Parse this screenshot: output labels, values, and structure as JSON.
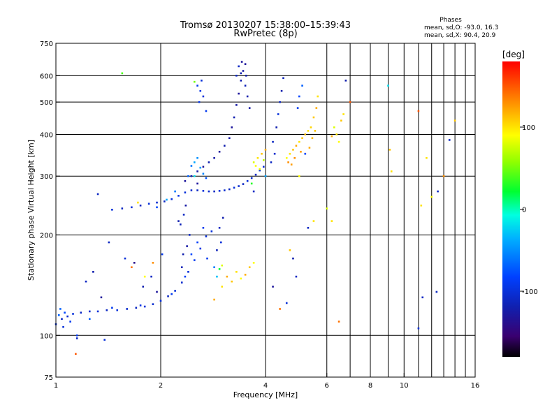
{
  "chart_data": {
    "type": "scatter",
    "title": "Tromsø 20130207 15:38:00–15:39:43",
    "subtitle": "RwPretec (8p)",
    "phases_box": {
      "heading": "Phases",
      "line_o": "mean, sd,O:  -93.0, 16.3",
      "line_x": "mean, sd,X:  90.4, 20.9"
    },
    "xlabel": "Frequency [MHz]",
    "ylabel": "Stationary phase Virtual Height [km]",
    "xscale": "log",
    "yscale": "log",
    "xlim": [
      1,
      16
    ],
    "ylim": [
      75,
      750
    ],
    "xticks": [
      {
        "value": 1,
        "label": "1"
      },
      {
        "value": 2,
        "label": "2"
      },
      {
        "value": 4,
        "label": "4"
      },
      {
        "value": 6,
        "label": "6"
      },
      {
        "value": 8,
        "label": "8"
      },
      {
        "value": 10,
        "label": "10"
      },
      {
        "value": 16,
        "label": "16"
      }
    ],
    "yticks": [
      {
        "value": 75,
        "label": "75"
      },
      {
        "value": 100,
        "label": "100"
      },
      {
        "value": 200,
        "label": "200"
      },
      {
        "value": 300,
        "label": "300"
      },
      {
        "value": 400,
        "label": "400"
      },
      {
        "value": 500,
        "label": "500"
      },
      {
        "value": 600,
        "label": "600"
      },
      {
        "value": 750,
        "label": "750"
      }
    ],
    "grid_x": [
      2,
      4,
      6,
      7,
      8,
      9,
      10,
      11,
      12,
      13,
      14,
      15
    ],
    "grid_y": [
      100,
      200,
      300,
      400,
      500,
      600
    ],
    "grid": true,
    "colorbar": {
      "label": "[deg]",
      "range": [
        -180,
        180
      ],
      "ticks": [
        {
          "value": 100,
          "label": "100"
        },
        {
          "value": 0,
          "label": "0"
        },
        {
          "value": -100,
          "label": "-100"
        }
      ]
    },
    "points": [
      [
        1.0,
        108,
        -100
      ],
      [
        1.04,
        112,
        -110
      ],
      [
        1.08,
        114,
        -105
      ],
      [
        1.12,
        116,
        -100
      ],
      [
        1.18,
        117,
        -110
      ],
      [
        1.25,
        118,
        -105
      ],
      [
        1.32,
        118,
        -100
      ],
      [
        1.4,
        119,
        -110
      ],
      [
        1.5,
        119,
        -100
      ],
      [
        1.6,
        120,
        -105
      ],
      [
        1.7,
        121,
        -110
      ],
      [
        1.8,
        122,
        -100
      ],
      [
        1.9,
        124,
        -105
      ],
      [
        2.0,
        127,
        -100
      ],
      [
        2.1,
        131,
        -110
      ],
      [
        2.2,
        136,
        -100
      ],
      [
        2.3,
        144,
        -105
      ],
      [
        2.4,
        155,
        -100
      ],
      [
        2.5,
        168,
        -90
      ],
      [
        2.6,
        182,
        -95
      ],
      [
        2.7,
        198,
        -100
      ],
      [
        2.8,
        205,
        -100
      ],
      [
        1.02,
        115,
        -70
      ],
      [
        1.06,
        117,
        -80
      ],
      [
        1.45,
        121,
        -90
      ],
      [
        1.75,
        123,
        -95
      ],
      [
        2.15,
        133,
        -90
      ],
      [
        2.35,
        150,
        -85
      ],
      [
        2.45,
        175,
        -80
      ],
      [
        2.55,
        190,
        -85
      ],
      [
        2.65,
        210,
        -90
      ],
      [
        2.72,
        170,
        -90
      ],
      [
        2.85,
        160,
        -60
      ],
      [
        2.9,
        150,
        -30
      ],
      [
        2.32,
        175,
        -120
      ],
      [
        2.38,
        185,
        -125
      ],
      [
        2.42,
        200,
        -110
      ],
      [
        2.3,
        160,
        -115
      ],
      [
        2.25,
        220,
        -120
      ],
      [
        2.33,
        230,
        -110
      ],
      [
        2.36,
        245,
        -125
      ],
      [
        2.28,
        215,
        -115
      ],
      [
        1.45,
        238,
        -100
      ],
      [
        1.55,
        240,
        -110
      ],
      [
        1.65,
        242,
        -100
      ],
      [
        1.75,
        245,
        -110
      ],
      [
        1.85,
        248,
        -100
      ],
      [
        1.95,
        250,
        -105
      ],
      [
        2.05,
        252,
        -110
      ],
      [
        2.15,
        256,
        -100
      ],
      [
        2.25,
        262,
        -95
      ],
      [
        2.35,
        268,
        -100
      ],
      [
        2.45,
        272,
        -105
      ],
      [
        2.55,
        272,
        -110
      ],
      [
        2.65,
        271,
        -100
      ],
      [
        2.75,
        270,
        -105
      ],
      [
        2.85,
        270,
        -110
      ],
      [
        2.95,
        271,
        -100
      ],
      [
        3.05,
        272,
        -105
      ],
      [
        3.15,
        274,
        -110
      ],
      [
        3.25,
        277,
        -100
      ],
      [
        3.35,
        280,
        -105
      ],
      [
        3.45,
        284,
        -110
      ],
      [
        3.55,
        290,
        -100
      ],
      [
        3.65,
        296,
        -105
      ],
      [
        3.75,
        303,
        -110
      ],
      [
        3.85,
        312,
        -100
      ],
      [
        3.95,
        320,
        -105
      ],
      [
        2.35,
        290,
        -130
      ],
      [
        2.45,
        300,
        -120
      ],
      [
        2.55,
        310,
        -125
      ],
      [
        2.65,
        320,
        -130
      ],
      [
        2.75,
        330,
        -120
      ],
      [
        2.85,
        340,
        -125
      ],
      [
        2.95,
        355,
        -130
      ],
      [
        3.05,
        370,
        -120
      ],
      [
        3.15,
        390,
        -125
      ],
      [
        3.2,
        420,
        -130
      ],
      [
        3.25,
        450,
        -120
      ],
      [
        3.3,
        490,
        -125
      ],
      [
        3.35,
        530,
        -130
      ],
      [
        3.4,
        580,
        -120
      ],
      [
        3.45,
        620,
        -125
      ],
      [
        3.5,
        650,
        -130
      ],
      [
        3.35,
        640,
        -110
      ],
      [
        3.4,
        610,
        -120
      ],
      [
        3.5,
        560,
        -115
      ],
      [
        3.55,
        520,
        -120
      ],
      [
        3.6,
        480,
        -125
      ],
      [
        3.3,
        600,
        -110
      ],
      [
        3.42,
        660,
        -130
      ],
      [
        3.52,
        600,
        -120
      ],
      [
        2.5,
        330,
        -40
      ],
      [
        2.55,
        340,
        -50
      ],
      [
        2.6,
        318,
        -45
      ],
      [
        2.45,
        322,
        -60
      ],
      [
        2.65,
        305,
        -55
      ],
      [
        2.4,
        300,
        -70
      ],
      [
        2.7,
        296,
        -75
      ],
      [
        2.55,
        560,
        -90
      ],
      [
        2.6,
        540,
        -95
      ],
      [
        2.65,
        520,
        -100
      ],
      [
        2.58,
        500,
        -95
      ],
      [
        2.62,
        580,
        -100
      ],
      [
        2.7,
        470,
        -90
      ],
      [
        2.5,
        575,
        50
      ],
      [
        3.7,
        330,
        80
      ],
      [
        3.8,
        340,
        100
      ],
      [
        3.9,
        350,
        110
      ],
      [
        3.75,
        322,
        90
      ],
      [
        4.0,
        360,
        120
      ],
      [
        3.95,
        335,
        70
      ],
      [
        3.85,
        315,
        85
      ],
      [
        4.2,
        380,
        -110
      ],
      [
        4.3,
        420,
        -120
      ],
      [
        4.35,
        460,
        -100
      ],
      [
        4.4,
        500,
        -110
      ],
      [
        4.45,
        540,
        -120
      ],
      [
        4.5,
        590,
        -115
      ],
      [
        4.25,
        350,
        -105
      ],
      [
        4.15,
        330,
        -110
      ],
      [
        4.6,
        340,
        90
      ],
      [
        4.7,
        350,
        100
      ],
      [
        4.8,
        360,
        110
      ],
      [
        4.9,
        370,
        120
      ],
      [
        5.0,
        380,
        100
      ],
      [
        5.1,
        390,
        110
      ],
      [
        5.2,
        400,
        115
      ],
      [
        5.3,
        410,
        100
      ],
      [
        5.4,
        420,
        105
      ],
      [
        5.5,
        450,
        110
      ],
      [
        5.6,
        480,
        120
      ],
      [
        5.65,
        520,
        100
      ],
      [
        4.65,
        330,
        130
      ],
      [
        4.75,
        325,
        125
      ],
      [
        5.2,
        350,
        130
      ],
      [
        5.35,
        365,
        120
      ],
      [
        4.85,
        340,
        130
      ],
      [
        5.05,
        355,
        125
      ],
      [
        5.45,
        390,
        115
      ],
      [
        5.55,
        410,
        110
      ],
      [
        4.95,
        480,
        -90
      ],
      [
        5.0,
        520,
        -80
      ],
      [
        5.1,
        560,
        -70
      ],
      [
        6.3,
        420,
        80
      ],
      [
        6.4,
        400,
        100
      ],
      [
        6.5,
        380,
        90
      ],
      [
        6.6,
        440,
        110
      ],
      [
        6.2,
        395,
        120
      ],
      [
        6.7,
        460,
        100
      ],
      [
        1.22,
        145,
        -110
      ],
      [
        1.28,
        155,
        -120
      ],
      [
        1.35,
        130,
        -130
      ],
      [
        1.42,
        190,
        -110
      ],
      [
        1.58,
        170,
        -100
      ],
      [
        1.68,
        165,
        -140
      ],
      [
        1.78,
        140,
        -120
      ],
      [
        1.88,
        150,
        -110
      ],
      [
        1.95,
        135,
        -130
      ],
      [
        1.15,
        100,
        -90
      ],
      [
        1.55,
        610,
        40
      ],
      [
        1.32,
        265,
        -110
      ],
      [
        1.72,
        250,
        100
      ],
      [
        2.2,
        270,
        -60
      ],
      [
        2.08,
        255,
        -40
      ],
      [
        1.95,
        242,
        -80
      ],
      [
        1.9,
        165,
        130
      ],
      [
        1.65,
        160,
        140
      ],
      [
        2.02,
        175,
        -90
      ],
      [
        1.8,
        150,
        90
      ],
      [
        1.05,
        106,
        -100
      ],
      [
        1.1,
        110,
        -90
      ],
      [
        1.03,
        120,
        -70
      ],
      [
        1.15,
        98,
        -110
      ],
      [
        3.0,
        140,
        100
      ],
      [
        3.1,
        150,
        120
      ],
      [
        3.2,
        145,
        110
      ],
      [
        3.3,
        155,
        100
      ],
      [
        3.4,
        148,
        90
      ],
      [
        3.5,
        152,
        120
      ],
      [
        3.0,
        162,
        80
      ],
      [
        2.95,
        158,
        20
      ],
      [
        3.6,
        160,
        110
      ],
      [
        3.7,
        165,
        90
      ],
      [
        2.85,
        128,
        120
      ],
      [
        2.95,
        210,
        -110
      ],
      [
        3.02,
        225,
        -120
      ],
      [
        2.98,
        190,
        -100
      ],
      [
        2.9,
        180,
        -115
      ],
      [
        4.8,
        170,
        -120
      ],
      [
        4.9,
        150,
        -110
      ],
      [
        4.2,
        140,
        -130
      ],
      [
        4.4,
        120,
        140
      ],
      [
        4.6,
        125,
        -100
      ],
      [
        4.7,
        180,
        110
      ],
      [
        5.3,
        210,
        -110
      ],
      [
        5.5,
        220,
        100
      ],
      [
        5.0,
        300,
        90
      ],
      [
        5.2,
        350,
        -80
      ],
      [
        6.0,
        240,
        80
      ],
      [
        6.2,
        220,
        100
      ],
      [
        6.5,
        110,
        140
      ],
      [
        6.8,
        580,
        -120
      ],
      [
        7.0,
        500,
        150
      ],
      [
        9.0,
        560,
        -20
      ],
      [
        9.1,
        360,
        110
      ],
      [
        9.2,
        310,
        100
      ],
      [
        11.0,
        470,
        150
      ],
      [
        11.2,
        245,
        100
      ],
      [
        11.0,
        105,
        -100
      ],
      [
        11.3,
        130,
        -110
      ],
      [
        11.6,
        340,
        100
      ],
      [
        12.5,
        270,
        -110
      ],
      [
        12.4,
        135,
        -110
      ],
      [
        13.0,
        300,
        130
      ],
      [
        13.5,
        385,
        -110
      ],
      [
        14.0,
        440,
        110
      ],
      [
        12.0,
        260,
        90
      ],
      [
        1.14,
        88,
        150
      ],
      [
        1.38,
        97,
        -100
      ],
      [
        1.25,
        112,
        -70
      ],
      [
        2.5,
        300,
        -20
      ],
      [
        2.55,
        285,
        -130
      ],
      [
        3.7,
        270,
        -110
      ],
      [
        3.65,
        285,
        30
      ],
      [
        4.0,
        300,
        -40
      ]
    ]
  }
}
